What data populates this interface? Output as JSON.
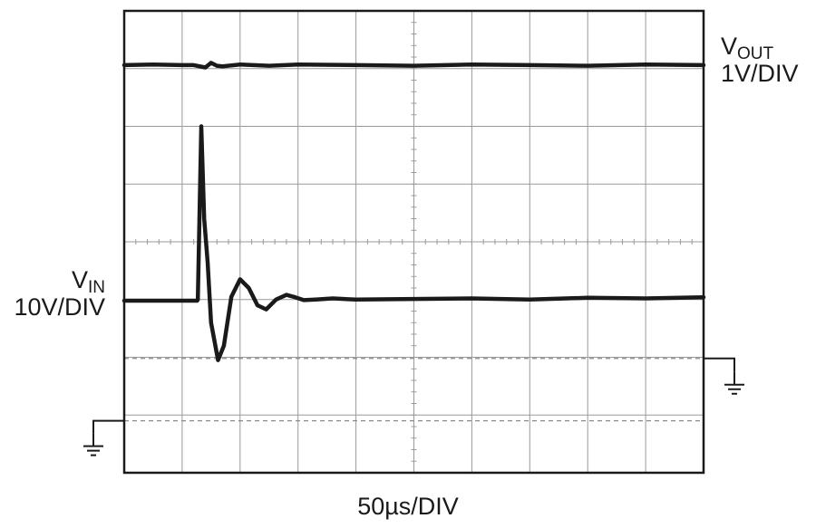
{
  "chart_data": {
    "type": "line",
    "title": "",
    "grid": true,
    "timebase": "50µs/DIV",
    "divisions": {
      "x": 10,
      "y": 8
    },
    "x_range_div": [
      0,
      10
    ],
    "y_range_div": [
      0,
      8
    ],
    "series": [
      {
        "name": "VOUT",
        "label_main": "V",
        "label_sub": "OUT",
        "scale": "1V/DIV",
        "ground_marker": "right",
        "ground_level_div": 1.98,
        "x": [
          0,
          0.5,
          1.0,
          1.2,
          1.4,
          1.5,
          1.6,
          1.7,
          2.0,
          2.5,
          3,
          4,
          5,
          6,
          7,
          8,
          9,
          10
        ],
        "y": [
          7.06,
          7.07,
          7.06,
          7.06,
          7.02,
          7.1,
          7.05,
          7.04,
          7.07,
          7.05,
          7.07,
          7.06,
          7.05,
          7.07,
          7.06,
          7.05,
          7.07,
          7.06
        ]
      },
      {
        "name": "VIN",
        "label_main": "V",
        "label_sub": "IN",
        "scale": "10V/DIV",
        "ground_marker": "left",
        "ground_level_div": 0.9,
        "x": [
          0,
          1.26,
          1.27,
          1.33,
          1.38,
          1.44,
          1.5,
          1.62,
          1.72,
          1.85,
          2.0,
          2.15,
          2.3,
          2.45,
          2.62,
          2.8,
          2.95,
          3.1,
          3.3,
          3.6,
          4,
          5,
          6,
          7,
          8,
          9,
          10
        ],
        "y": [
          2.98,
          2.98,
          3.0,
          6.0,
          4.4,
          3.65,
          2.6,
          1.95,
          2.2,
          3.05,
          3.35,
          3.2,
          2.9,
          2.83,
          3.0,
          3.08,
          3.04,
          2.99,
          3.0,
          3.02,
          3.0,
          3.01,
          3.02,
          3.0,
          3.03,
          3.02,
          3.04
        ]
      }
    ]
  }
}
